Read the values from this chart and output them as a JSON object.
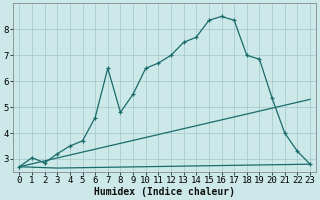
{
  "background_color": "#cce8e8",
  "grid_color": "#aacccc",
  "line_color": "#1a6b6b",
  "xlabel": "Humidex (Indice chaleur)",
  "xlim": [
    -0.5,
    23.5
  ],
  "ylim": [
    2.5,
    9.0
  ],
  "x_ticks": [
    0,
    1,
    2,
    3,
    4,
    5,
    6,
    7,
    8,
    9,
    10,
    11,
    12,
    13,
    14,
    15,
    16,
    17,
    18,
    19,
    20,
    21,
    22,
    23
  ],
  "y_ticks": [
    3,
    4,
    5,
    6,
    7,
    8
  ],
  "line1_x": [
    0,
    1,
    2,
    3,
    4,
    5,
    6,
    7,
    8,
    9,
    10,
    11,
    12,
    13,
    14,
    15,
    16,
    17,
    18,
    19,
    20,
    21,
    22,
    23
  ],
  "line1_y": [
    2.7,
    3.05,
    2.85,
    3.2,
    3.5,
    3.7,
    4.6,
    6.5,
    4.8,
    5.5,
    6.5,
    6.7,
    7.0,
    7.5,
    7.7,
    8.35,
    8.5,
    8.35,
    7.0,
    6.85,
    5.35,
    4.0,
    3.3,
    2.8
  ],
  "line2_x": [
    0,
    3,
    23
  ],
  "line2_y": [
    2.7,
    2.65,
    2.8
  ],
  "line3_x": [
    0,
    23
  ],
  "line3_y": [
    2.7,
    5.3
  ],
  "font_size_label": 7,
  "tick_font_size": 6.5
}
